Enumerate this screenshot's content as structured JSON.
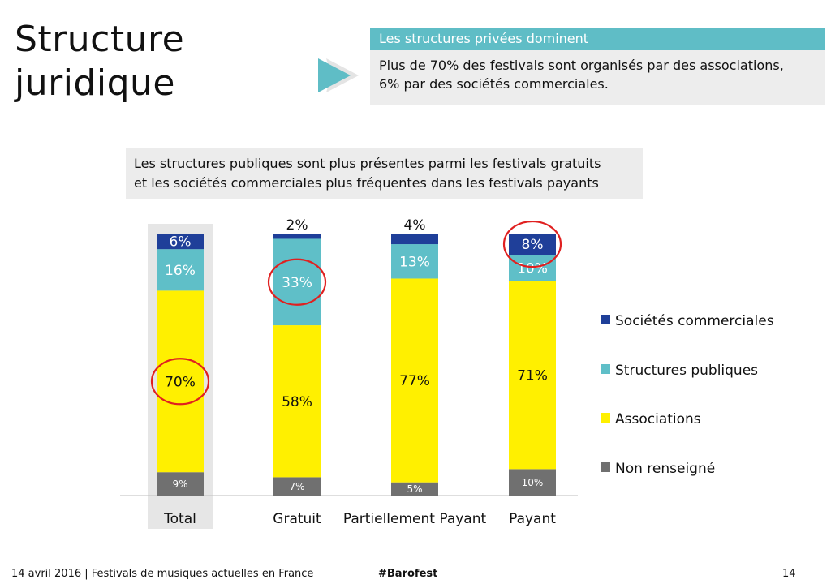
{
  "page": {
    "title_line1": "Structure",
    "title_line2": "juridique"
  },
  "callout": {
    "heading": "Les structures privées dominent",
    "line1": "Plus de 70% des festivals sont organisés par des associations,",
    "line2": "6% par des sociétés commerciales."
  },
  "subtitle": {
    "line1": "Les structures publiques sont plus présentes parmi les festivals gratuits",
    "line2": "et les sociétés commerciales plus fréquentes dans les festivals payants"
  },
  "chart_data": {
    "type": "bar",
    "stacked": true,
    "percent": true,
    "categories": [
      "Total",
      "Gratuit",
      "Partiellement Payant",
      "Payant"
    ],
    "series": [
      {
        "name": "Non renseigné",
        "values": [
          9,
          7,
          5,
          10
        ],
        "color": "#707070",
        "label_color": "#ffffff"
      },
      {
        "name": "Associations",
        "values": [
          70,
          58,
          77,
          71
        ],
        "color": "#fff000",
        "label_color": "#111111"
      },
      {
        "name": "Structures publiques",
        "values": [
          16,
          33,
          13,
          10
        ],
        "color": "#5fbfc8",
        "label_color": "#ffffff"
      },
      {
        "name": "Sociétés commerciales",
        "values": [
          6,
          2,
          4,
          8
        ],
        "color": "#1f3f99",
        "label_color": "#ffffff"
      }
    ],
    "data_labels": [
      [
        "9%",
        "7%",
        "5%",
        "10%"
      ],
      [
        "70%",
        "58%",
        "77%",
        "71%"
      ],
      [
        "16%",
        "33%",
        "13%",
        "10%"
      ],
      [
        "6%",
        "2%",
        "4%",
        "8%"
      ]
    ],
    "highlighted_category": "Total",
    "circled_labels": [
      {
        "series": "Associations",
        "category": "Total"
      },
      {
        "series": "Structures publiques",
        "category": "Gratuit"
      },
      {
        "series": "Sociétés commerciales",
        "category": "Payant"
      }
    ],
    "circle_color": "#e02020",
    "legend_position": "right",
    "legend_order": [
      "Sociétés commerciales",
      "Structures publiques",
      "Associations",
      "Non renseigné"
    ],
    "grid": false
  },
  "footer": {
    "left": "14 avril 2016 | Festivals de musiques actuelles en France",
    "tag": "#Barofest",
    "page_number": "14"
  }
}
